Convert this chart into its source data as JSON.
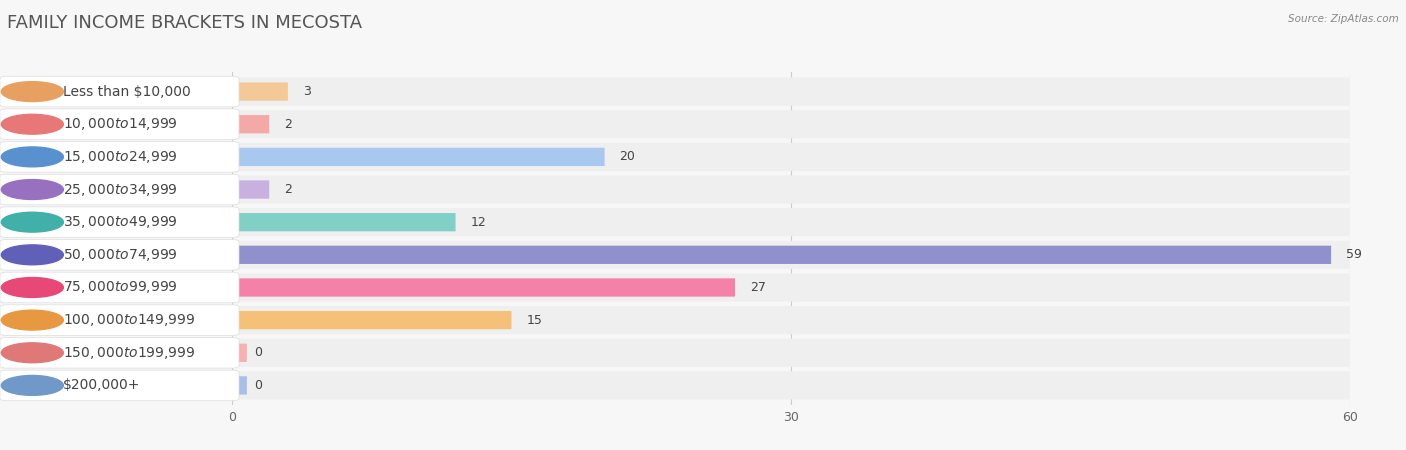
{
  "title": "FAMILY INCOME BRACKETS IN MECOSTA",
  "source": "Source: ZipAtlas.com",
  "categories": [
    "Less than $10,000",
    "$10,000 to $14,999",
    "$15,000 to $24,999",
    "$25,000 to $34,999",
    "$35,000 to $49,999",
    "$50,000 to $74,999",
    "$75,000 to $99,999",
    "$100,000 to $149,999",
    "$150,000 to $199,999",
    "$200,000+"
  ],
  "values": [
    3,
    2,
    20,
    2,
    12,
    59,
    27,
    15,
    0,
    0
  ],
  "bar_colors": [
    "#f5c898",
    "#f5a8a8",
    "#a8c8f0",
    "#c8b0e0",
    "#80d0c8",
    "#9090cc",
    "#f580a8",
    "#f5c078",
    "#f5b0b0",
    "#a8c0e8"
  ],
  "dot_colors": [
    "#e8a060",
    "#e87878",
    "#5890d0",
    "#9870c0",
    "#40b0a8",
    "#6060b8",
    "#e84878",
    "#e89840",
    "#e07878",
    "#7098c8"
  ],
  "xlim": [
    0,
    60
  ],
  "xticks": [
    0,
    30,
    60
  ],
  "background_color": "#f7f7f7",
  "row_bg_color": "#efefef",
  "label_bg_color": "#ffffff",
  "title_fontsize": 13,
  "label_fontsize": 10,
  "value_fontsize": 9
}
